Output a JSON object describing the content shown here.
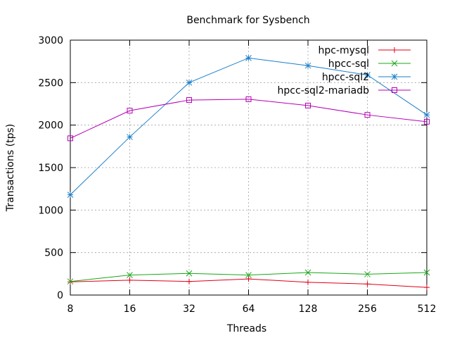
{
  "chart_data": {
    "type": "line",
    "title": "Benchmark for Sysbench",
    "xlabel": "Threads",
    "ylabel": "Transactions (tps)",
    "x_scale": "log2",
    "x": [
      8,
      16,
      32,
      64,
      128,
      256,
      512
    ],
    "xticks": [
      "8",
      "16",
      "32",
      "64",
      "128",
      "256",
      "512"
    ],
    "yticks": [
      "0",
      "500",
      "1000",
      "1500",
      "2000",
      "2500",
      "3000"
    ],
    "ylim": [
      0,
      3000
    ],
    "grid": true,
    "legend_position": "top-right",
    "series": [
      {
        "name": "hpc-mysql",
        "color": "#e0001a",
        "marker": "plus",
        "values": [
          155,
          175,
          160,
          190,
          150,
          130,
          90
        ]
      },
      {
        "name": "hpcc-sql",
        "color": "#17a817",
        "marker": "x",
        "values": [
          160,
          235,
          255,
          235,
          265,
          245,
          265
        ]
      },
      {
        "name": "hpcc-sql2",
        "color": "#1c7ec8",
        "marker": "star",
        "values": [
          1180,
          1860,
          2500,
          2790,
          2700,
          2590,
          2120
        ]
      },
      {
        "name": "hpcc-sql2-mariadb",
        "color": "#b400b4",
        "marker": "square",
        "values": [
          1845,
          2170,
          2295,
          2305,
          2230,
          2120,
          2040
        ]
      }
    ]
  }
}
